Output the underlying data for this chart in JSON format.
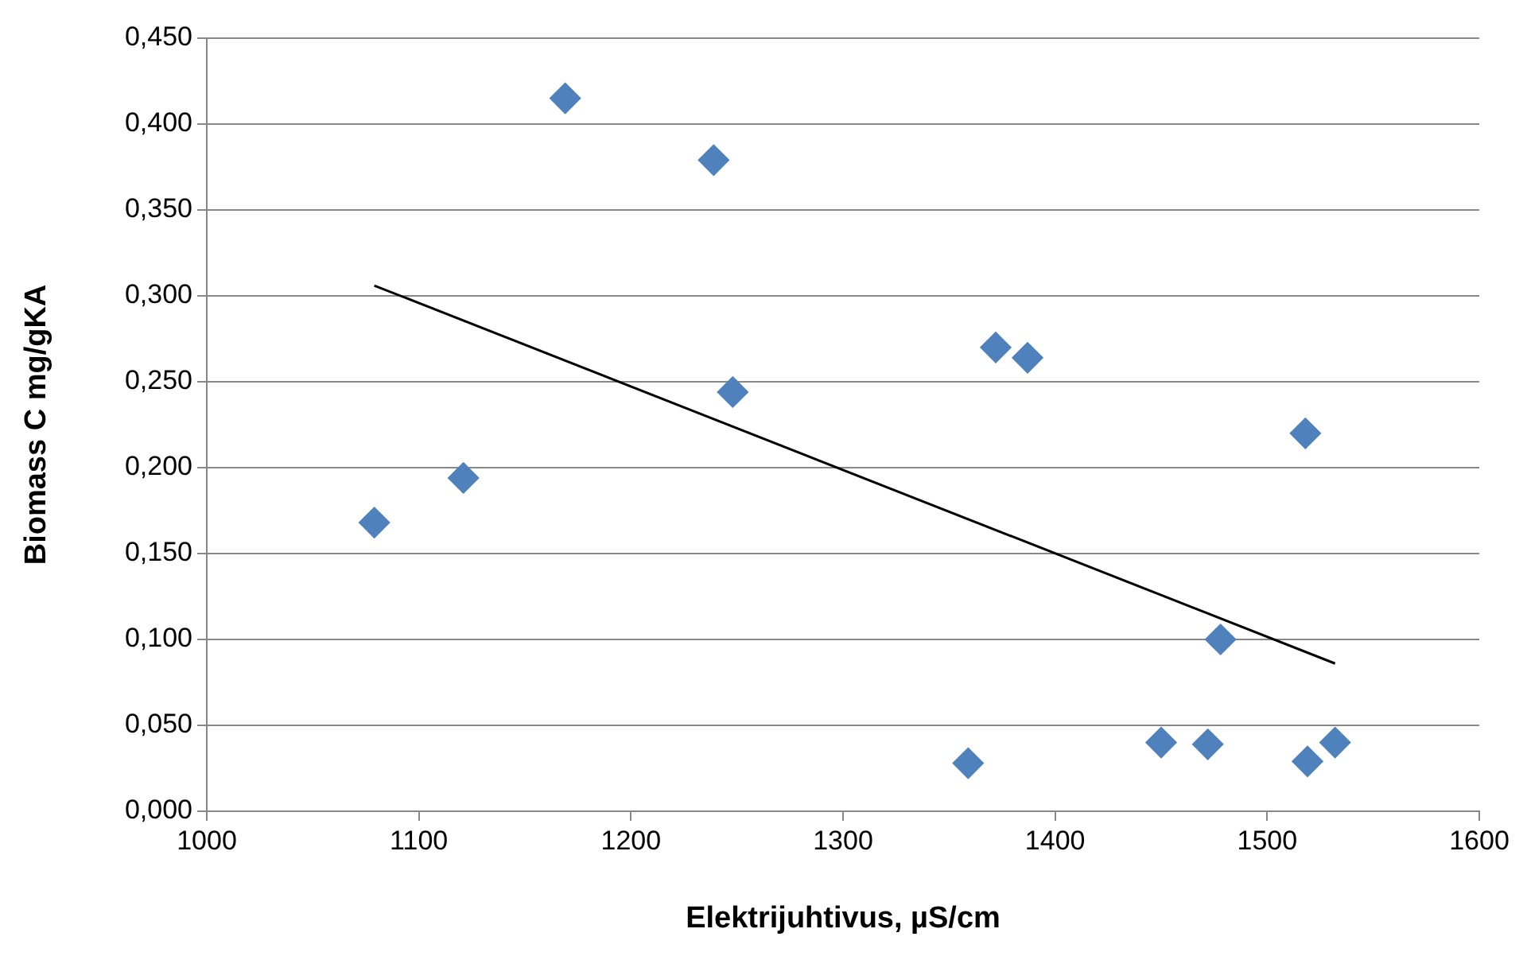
{
  "chart_data": {
    "type": "scatter",
    "xlabel": "Elektrijuhtivus, µS/cm",
    "ylabel": "Biomass C mg/gKA",
    "series": [
      {
        "color": "#4f81bd",
        "marker": "diamond",
        "x": [
          1079,
          1121,
          1169,
          1239,
          1248,
          1359,
          1372,
          1387,
          1450,
          1472,
          1478,
          1518,
          1519,
          1532
        ],
        "values": [
          0.168,
          0.194,
          0.415,
          0.379,
          0.244,
          0.028,
          0.27,
          0.264,
          0.04,
          0.039,
          0.1,
          0.22,
          0.029,
          0.04
        ]
      },
      {
        "type": "line",
        "color": "#000000",
        "marker": "none",
        "line_style": "solid",
        "x": [
          1079,
          1532
        ],
        "values": [
          0.306,
          0.086
        ]
      }
    ],
    "xlim": [
      1000,
      1600
    ],
    "xticks": [
      1000,
      1100,
      1200,
      1300,
      1400,
      1500,
      1600
    ],
    "ylim": [
      0,
      0.45
    ],
    "yticks": [
      {
        "value": 0,
        "label": "0,000"
      },
      {
        "value": 0.05,
        "label": "0,050"
      },
      {
        "value": 0.1,
        "label": "0,100"
      },
      {
        "value": 0.15,
        "label": "0,150"
      },
      {
        "value": 0.2,
        "label": "0,200"
      },
      {
        "value": 0.25,
        "label": "0,250"
      },
      {
        "value": 0.3,
        "label": "0,300"
      },
      {
        "value": 0.35,
        "label": "0,350"
      },
      {
        "value": 0.4,
        "label": "0,400"
      },
      {
        "value": 0.45,
        "label": "0,450"
      }
    ],
    "grid": "y",
    "legend": false
  }
}
